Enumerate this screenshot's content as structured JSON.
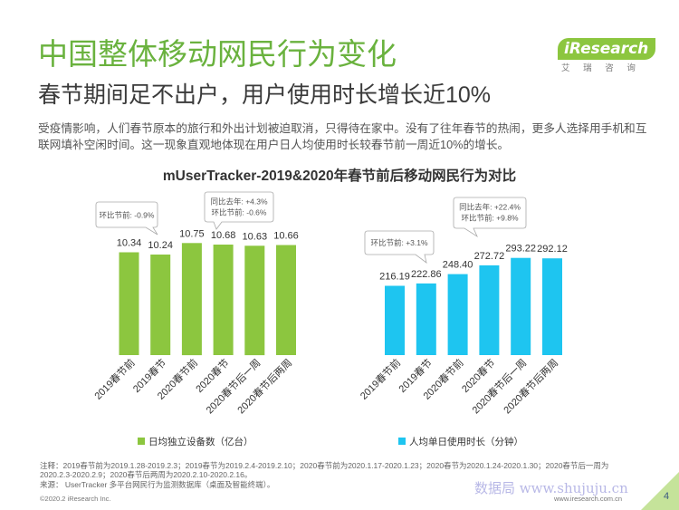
{
  "colors": {
    "title": "#6ab23e",
    "logo": "#8cc63f",
    "corner": "#c5e39a"
  },
  "header": {
    "title": "中国整体移动网民行为变化",
    "subtitle": "春节期间足不出户，用户使用时长增长近10%"
  },
  "logo": {
    "wordmark": "iResearch",
    "chinese_name": "艾 瑞 咨 询"
  },
  "intro_text": "受疫情影响，人们春节原本的旅行和外出计划被迫取消，只得待在家中。没有了往年春节的热闹，更多人选择用手机和互联网填补空闲时间。这一现象直观地体现在用户日人均使用时长较春节前一周近10%的增长。",
  "figure_title": "mUserTracker-2019&2020年春节前后移动网民行为对比",
  "chart_data": [
    {
      "type": "bar",
      "categories": [
        "2019春节前",
        "2019春节",
        "2020春节前",
        "2020春节",
        "2020春节后一周",
        "2020春节后两周"
      ],
      "series": [
        {
          "name": "日均独立设备数（亿台）",
          "values": [
            10.34,
            10.24,
            10.75,
            10.68,
            10.63,
            10.66
          ]
        }
      ],
      "ylim": [
        5.8,
        11.4
      ],
      "grid": false,
      "legend": "bottom",
      "color": "#8cc63f",
      "annotations": [
        {
          "lines": [
            "环比节前: -0.9%"
          ]
        },
        {
          "lines": [
            "同比去年: +4.3%",
            "环比节前: -0.6%"
          ]
        }
      ]
    },
    {
      "type": "bar",
      "categories": [
        "2019春节前",
        "2019春节",
        "2020春节前",
        "2020春节",
        "2020春节后一周",
        "2020春节后两周"
      ],
      "series": [
        {
          "name": "人均单日使用时长（分钟）",
          "values": [
            216.19,
            222.86,
            248.4,
            272.72,
            293.22,
            292.12
          ]
        }
      ],
      "ylim": [
        25,
        375
      ],
      "grid": false,
      "legend": "bottom",
      "color": "#1ec5f0",
      "annotations": [
        {
          "lines": [
            "环比节前: +3.1%"
          ]
        },
        {
          "lines": [
            "同比去年: +22.4%",
            "环比节前: +9.8%"
          ]
        }
      ]
    }
  ],
  "notes": {
    "line1": "注释：2019春节前为2019.1.28-2019.2.3；2019春节为2019.2.4-2019.2.10；2020春节前为2020.1.17-2020.1.23；2020春节为2020.1.24-2020.1.30；2020春节后一周为",
    "line2": "2020.2.3-2020.2.9；2020春节后两周为2020.2.10-2020.2.16。",
    "source": "来源： UserTracker 多平台网民行为监测数据库（桌面及智能终端）。"
  },
  "footer": {
    "copyright": "©2020.2 iResearch Inc.",
    "website": "www.iresearch.com.cn",
    "page_number": "4"
  },
  "watermark": "数据局  www.shujuju.cn"
}
